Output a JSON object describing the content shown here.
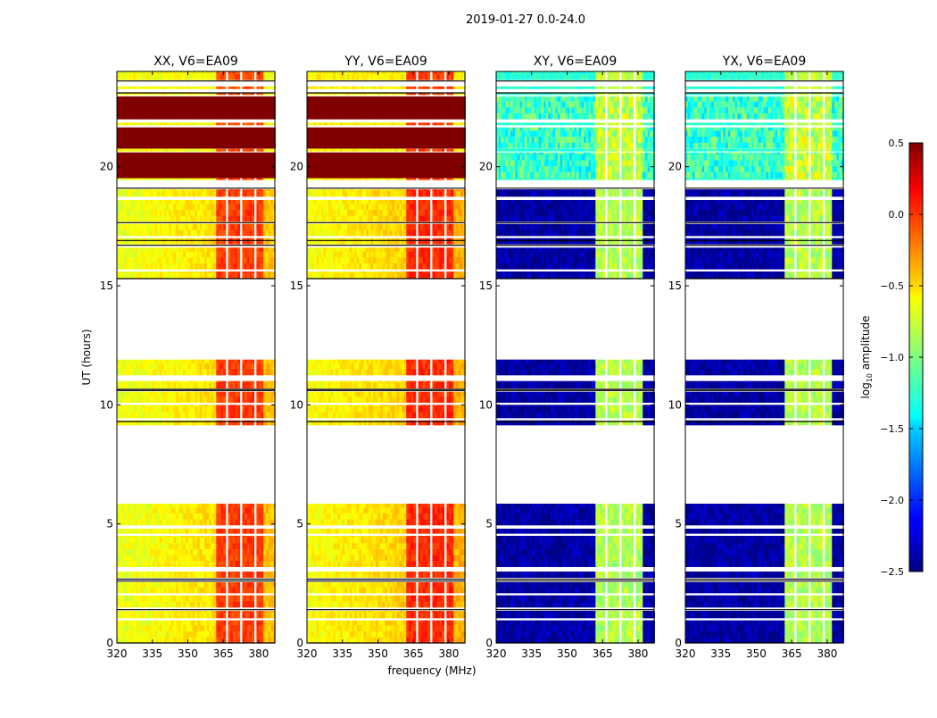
{
  "chart_data": {
    "type": "heatmap",
    "title": "2019-01-27 0.0-24.0",
    "xlabel": "frequency (MHz)",
    "ylabel": "UT (hours)",
    "xlim": [
      320,
      386.8
    ],
    "ylim": [
      0,
      24
    ],
    "xticks": [
      320,
      335,
      350,
      365,
      380
    ],
    "yticks": [
      0,
      5,
      10,
      15,
      20
    ],
    "colorbar": {
      "label_main": "log",
      "label_sub": "10",
      "label_rest": " amplitude",
      "colormap": "jet",
      "range": [
        -2.5,
        0.5
      ],
      "ticks": [
        0.5,
        0.0,
        -0.5,
        -1.0,
        -1.5,
        -2.0,
        -2.5
      ],
      "tick_labels": [
        "0.5",
        "0.0",
        "−0.5",
        "−1.0",
        "−1.5",
        "−2.0",
        "−2.5"
      ]
    },
    "band": {
      "start_mhz": 362,
      "end_mhz": 382,
      "gaps_mhz": [
        366.8,
        372.8,
        378.1
      ]
    },
    "panels": [
      {
        "title": "XX, V6=EA09",
        "base": -0.7,
        "band_level": -0.05,
        "saturated_level": 0.5,
        "quiet_level": -0.65,
        "quiet_band": -0.1
      },
      {
        "title": "YY, V6=EA09",
        "base": -0.65,
        "band_level": 0.0,
        "saturated_level": 0.5,
        "quiet_level": -0.6,
        "quiet_band": -0.05
      },
      {
        "title": "XY, V6=EA09",
        "base": -2.4,
        "band_level": -0.85,
        "saturated_level": -1.2,
        "quiet_level": -1.25,
        "quiet_band": -0.8
      },
      {
        "title": "YX, V6=EA09",
        "base": -2.4,
        "band_level": -0.85,
        "saturated_level": -1.2,
        "quiet_level": -1.25,
        "quiet_band": -0.8
      }
    ],
    "segments_hours": [
      {
        "start": 0.0,
        "end": 0.95,
        "kind": "normal"
      },
      {
        "start": 1.05,
        "end": 1.35,
        "kind": "normal"
      },
      {
        "start": 1.5,
        "end": 2.0,
        "kind": "normal"
      },
      {
        "start": 2.1,
        "end": 2.55,
        "kind": "normal"
      },
      {
        "start": 2.75,
        "end": 3.0,
        "kind": "normal"
      },
      {
        "start": 3.2,
        "end": 4.5,
        "kind": "normal"
      },
      {
        "start": 4.6,
        "end": 4.8,
        "kind": "normal"
      },
      {
        "start": 4.95,
        "end": 5.85,
        "kind": "normal"
      },
      {
        "start": 9.15,
        "end": 9.35,
        "kind": "normal"
      },
      {
        "start": 9.45,
        "end": 10.0,
        "kind": "normal"
      },
      {
        "start": 10.1,
        "end": 10.55,
        "kind": "normal"
      },
      {
        "start": 10.7,
        "end": 11.0,
        "kind": "normal"
      },
      {
        "start": 11.25,
        "end": 11.9,
        "kind": "normal"
      },
      {
        "start": 15.3,
        "end": 15.6,
        "kind": "normal"
      },
      {
        "start": 15.7,
        "end": 16.6,
        "kind": "normal"
      },
      {
        "start": 16.75,
        "end": 17.0,
        "kind": "normal"
      },
      {
        "start": 17.1,
        "end": 17.6,
        "kind": "normal"
      },
      {
        "start": 17.7,
        "end": 18.6,
        "kind": "normal"
      },
      {
        "start": 18.75,
        "end": 19.05,
        "kind": "normal"
      },
      {
        "start": 19.45,
        "end": 19.53,
        "kind": "quiet"
      },
      {
        "start": 19.53,
        "end": 20.6,
        "kind": "saturated"
      },
      {
        "start": 20.65,
        "end": 20.75,
        "kind": "quiet"
      },
      {
        "start": 20.77,
        "end": 21.65,
        "kind": "saturated"
      },
      {
        "start": 21.75,
        "end": 21.85,
        "kind": "quiet"
      },
      {
        "start": 22.0,
        "end": 22.95,
        "kind": "saturated"
      },
      {
        "start": 23.02,
        "end": 23.08,
        "kind": "quiet"
      },
      {
        "start": 23.27,
        "end": 23.37,
        "kind": "quiet"
      },
      {
        "start": 23.65,
        "end": 24.0,
        "kind": "quiet"
      }
    ],
    "flag_lines_hours": [
      0.0,
      1.4,
      2.6,
      2.68,
      9.3,
      10.6,
      10.65,
      15.3,
      16.7,
      16.9,
      17.65,
      19.1,
      23.6,
      23.1
    ]
  }
}
